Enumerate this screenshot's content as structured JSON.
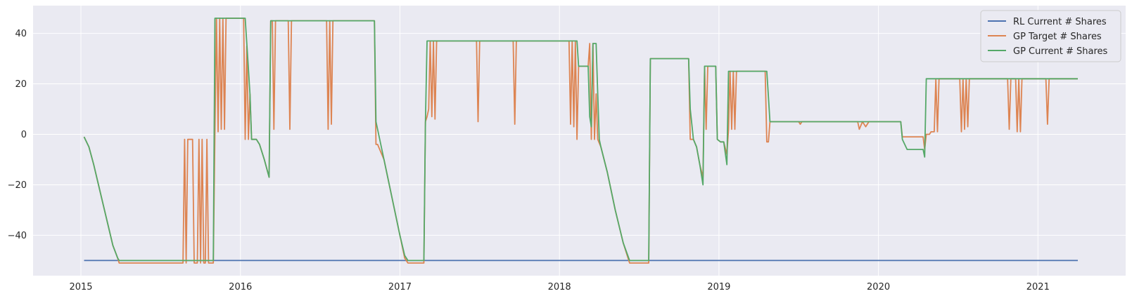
{
  "colors": {
    "background": "#eaeaf2",
    "grid": "#ffffff",
    "rl_current": "#4c72b0",
    "gp_target": "#dd8452",
    "gp_current": "#55a868"
  },
  "legend": {
    "placement": "top-right",
    "items": [
      {
        "label": "RL Current # Shares",
        "color": "#4c72b0"
      },
      {
        "label": "GP Target # Shares",
        "color": "#dd8452"
      },
      {
        "label": "GP Current # Shares",
        "color": "#55a868"
      }
    ]
  },
  "chart_data": {
    "type": "line",
    "title": "",
    "xlabel": "",
    "ylabel": "",
    "grid": true,
    "xlim": [
      2014.7,
      2021.55
    ],
    "ylim": [
      -56,
      51
    ],
    "x_ticks": [
      2015,
      2016,
      2017,
      2018,
      2019,
      2020,
      2021
    ],
    "x_tick_labels": [
      "2015",
      "2016",
      "2017",
      "2018",
      "2019",
      "2020",
      "2021"
    ],
    "y_ticks": [
      -40,
      -20,
      0,
      20,
      40
    ],
    "y_tick_labels": [
      "−40",
      "−20",
      "0",
      "20",
      "40"
    ],
    "series": [
      {
        "name": "RL Current # Shares",
        "color": "#4c72b0",
        "points": [
          [
            2015.02,
            -50
          ],
          [
            2021.25,
            -50
          ]
        ]
      },
      {
        "name": "GP Target # Shares",
        "color": "#dd8452",
        "points": [
          [
            2015.02,
            -1
          ],
          [
            2015.05,
            -5
          ],
          [
            2015.08,
            -12
          ],
          [
            2015.11,
            -20
          ],
          [
            2015.14,
            -28
          ],
          [
            2015.17,
            -36
          ],
          [
            2015.2,
            -44
          ],
          [
            2015.23,
            -49
          ],
          [
            2015.24,
            -51
          ],
          [
            2015.64,
            -51
          ],
          [
            2015.65,
            -2
          ],
          [
            2015.66,
            -51
          ],
          [
            2015.67,
            -2
          ],
          [
            2015.7,
            -2
          ],
          [
            2015.71,
            -51
          ],
          [
            2015.73,
            -51
          ],
          [
            2015.74,
            -2
          ],
          [
            2015.75,
            -51
          ],
          [
            2015.76,
            -2
          ],
          [
            2015.77,
            -51
          ],
          [
            2015.78,
            -51
          ],
          [
            2015.79,
            -2
          ],
          [
            2015.8,
            -51
          ],
          [
            2015.83,
            -51
          ],
          [
            2015.84,
            1
          ],
          [
            2015.85,
            46
          ],
          [
            2015.86,
            1
          ],
          [
            2015.87,
            46
          ],
          [
            2015.88,
            2
          ],
          [
            2015.89,
            46
          ],
          [
            2015.9,
            2
          ],
          [
            2015.91,
            46
          ],
          [
            2016.02,
            46
          ],
          [
            2016.03,
            -2
          ],
          [
            2016.04,
            35
          ],
          [
            2016.05,
            -2
          ],
          [
            2016.06,
            16
          ],
          [
            2016.07,
            -2
          ],
          [
            2016.1,
            -2
          ],
          [
            2016.12,
            -4
          ],
          [
            2016.15,
            -10
          ],
          [
            2016.18,
            -17
          ],
          [
            2016.19,
            45
          ],
          [
            2016.2,
            45
          ],
          [
            2016.21,
            2
          ],
          [
            2016.22,
            45
          ],
          [
            2016.3,
            45
          ],
          [
            2016.31,
            2
          ],
          [
            2016.32,
            45
          ],
          [
            2016.54,
            45
          ],
          [
            2016.55,
            2
          ],
          [
            2016.56,
            45
          ],
          [
            2016.57,
            4
          ],
          [
            2016.58,
            45
          ],
          [
            2016.84,
            45
          ],
          [
            2016.85,
            -4
          ],
          [
            2016.86,
            -4
          ],
          [
            2016.9,
            -10
          ],
          [
            2016.95,
            -25
          ],
          [
            2017,
            -40
          ],
          [
            2017.03,
            -49
          ],
          [
            2017.05,
            -51
          ],
          [
            2017.15,
            -51
          ],
          [
            2017.16,
            5
          ],
          [
            2017.17,
            7
          ],
          [
            2017.18,
            10
          ],
          [
            2017.19,
            37
          ],
          [
            2017.2,
            7
          ],
          [
            2017.21,
            37
          ],
          [
            2017.22,
            6
          ],
          [
            2017.23,
            37
          ],
          [
            2017.48,
            37
          ],
          [
            2017.49,
            5
          ],
          [
            2017.5,
            37
          ],
          [
            2017.71,
            37
          ],
          [
            2017.72,
            4
          ],
          [
            2017.73,
            37
          ],
          [
            2018.06,
            37
          ],
          [
            2018.07,
            4
          ],
          [
            2018.08,
            37
          ],
          [
            2018.09,
            3
          ],
          [
            2018.1,
            37
          ],
          [
            2018.11,
            -2
          ],
          [
            2018.12,
            27
          ],
          [
            2018.18,
            27
          ],
          [
            2018.19,
            36
          ],
          [
            2018.2,
            -2
          ],
          [
            2018.21,
            36
          ],
          [
            2018.22,
            -2
          ],
          [
            2018.23,
            16
          ],
          [
            2018.24,
            -2
          ],
          [
            2018.26,
            -5
          ],
          [
            2018.3,
            -15
          ],
          [
            2018.35,
            -30
          ],
          [
            2018.4,
            -43
          ],
          [
            2018.44,
            -51
          ],
          [
            2018.56,
            -51
          ],
          [
            2018.57,
            30
          ],
          [
            2018.81,
            30
          ],
          [
            2018.82,
            -2
          ],
          [
            2018.84,
            -2
          ],
          [
            2018.86,
            -5
          ],
          [
            2018.88,
            -12
          ],
          [
            2018.9,
            -17
          ],
          [
            2018.91,
            27
          ],
          [
            2018.92,
            2
          ],
          [
            2018.93,
            27
          ],
          [
            2018.98,
            27
          ],
          [
            2018.99,
            -2
          ],
          [
            2019.01,
            -3
          ],
          [
            2019.03,
            -3
          ],
          [
            2019.05,
            -8
          ],
          [
            2019.06,
            2
          ],
          [
            2019.07,
            25
          ],
          [
            2019.08,
            2
          ],
          [
            2019.09,
            25
          ],
          [
            2019.1,
            2
          ],
          [
            2019.11,
            25
          ],
          [
            2019.29,
            25
          ],
          [
            2019.3,
            -3
          ],
          [
            2019.31,
            -3
          ],
          [
            2019.32,
            5
          ],
          [
            2019.5,
            5
          ],
          [
            2019.51,
            4
          ],
          [
            2019.52,
            5
          ],
          [
            2019.87,
            5
          ],
          [
            2019.88,
            2
          ],
          [
            2019.9,
            5
          ],
          [
            2019.92,
            3
          ],
          [
            2019.94,
            5
          ],
          [
            2020.14,
            5
          ],
          [
            2020.15,
            -1
          ],
          [
            2020.28,
            -1
          ],
          [
            2020.29,
            -6
          ],
          [
            2020.3,
            0
          ],
          [
            2020.32,
            0
          ],
          [
            2020.33,
            1
          ],
          [
            2020.35,
            1
          ],
          [
            2020.36,
            22
          ],
          [
            2020.37,
            1
          ],
          [
            2020.38,
            22
          ],
          [
            2020.51,
            22
          ],
          [
            2020.52,
            1
          ],
          [
            2020.53,
            22
          ],
          [
            2020.54,
            2
          ],
          [
            2020.55,
            22
          ],
          [
            2020.56,
            3
          ],
          [
            2020.57,
            22
          ],
          [
            2020.81,
            22
          ],
          [
            2020.82,
            2
          ],
          [
            2020.83,
            22
          ],
          [
            2020.86,
            22
          ],
          [
            2020.87,
            1
          ],
          [
            2020.88,
            22
          ],
          [
            2020.89,
            1
          ],
          [
            2020.9,
            22
          ],
          [
            2021.05,
            22
          ],
          [
            2021.06,
            4
          ],
          [
            2021.07,
            22
          ],
          [
            2021.25,
            22
          ]
        ]
      },
      {
        "name": "GP Current # Shares",
        "color": "#55a868",
        "points": [
          [
            2015.02,
            -1
          ],
          [
            2015.05,
            -5
          ],
          [
            2015.08,
            -12
          ],
          [
            2015.11,
            -20
          ],
          [
            2015.14,
            -28
          ],
          [
            2015.17,
            -36
          ],
          [
            2015.2,
            -44
          ],
          [
            2015.23,
            -49
          ],
          [
            2015.24,
            -50
          ],
          [
            2015.8,
            -50
          ],
          [
            2015.83,
            -50
          ],
          [
            2015.84,
            46
          ],
          [
            2016.03,
            46
          ],
          [
            2016.04,
            36
          ],
          [
            2016.05,
            26
          ],
          [
            2016.06,
            16
          ],
          [
            2016.07,
            -2
          ],
          [
            2016.1,
            -2
          ],
          [
            2016.12,
            -4
          ],
          [
            2016.15,
            -10
          ],
          [
            2016.18,
            -17
          ],
          [
            2016.19,
            45
          ],
          [
            2016.84,
            45
          ],
          [
            2016.85,
            5
          ],
          [
            2016.9,
            -10
          ],
          [
            2016.95,
            -25
          ],
          [
            2017,
            -40
          ],
          [
            2017.03,
            -48
          ],
          [
            2017.05,
            -50
          ],
          [
            2017.14,
            -50
          ],
          [
            2017.15,
            -50
          ],
          [
            2017.16,
            5
          ],
          [
            2017.17,
            37
          ],
          [
            2018.11,
            37
          ],
          [
            2018.12,
            27
          ],
          [
            2018.18,
            27
          ],
          [
            2018.19,
            7
          ],
          [
            2018.2,
            3
          ],
          [
            2018.21,
            36
          ],
          [
            2018.23,
            36
          ],
          [
            2018.24,
            16
          ],
          [
            2018.25,
            -2
          ],
          [
            2018.26,
            -5
          ],
          [
            2018.3,
            -15
          ],
          [
            2018.35,
            -30
          ],
          [
            2018.4,
            -43
          ],
          [
            2018.44,
            -50
          ],
          [
            2018.56,
            -50
          ],
          [
            2018.57,
            30
          ],
          [
            2018.81,
            30
          ],
          [
            2018.82,
            10
          ],
          [
            2018.84,
            -2
          ],
          [
            2018.86,
            -5
          ],
          [
            2018.88,
            -12
          ],
          [
            2018.9,
            -20
          ],
          [
            2018.91,
            27
          ],
          [
            2018.98,
            27
          ],
          [
            2018.99,
            -2
          ],
          [
            2019.01,
            -3
          ],
          [
            2019.03,
            -3
          ],
          [
            2019.05,
            -12
          ],
          [
            2019.06,
            25
          ],
          [
            2019.3,
            25
          ],
          [
            2019.31,
            15
          ],
          [
            2019.32,
            5
          ],
          [
            2020.14,
            5
          ],
          [
            2020.15,
            -2
          ],
          [
            2020.18,
            -6
          ],
          [
            2020.28,
            -6
          ],
          [
            2020.29,
            -9
          ],
          [
            2020.3,
            22
          ],
          [
            2021.25,
            22
          ]
        ]
      }
    ]
  }
}
